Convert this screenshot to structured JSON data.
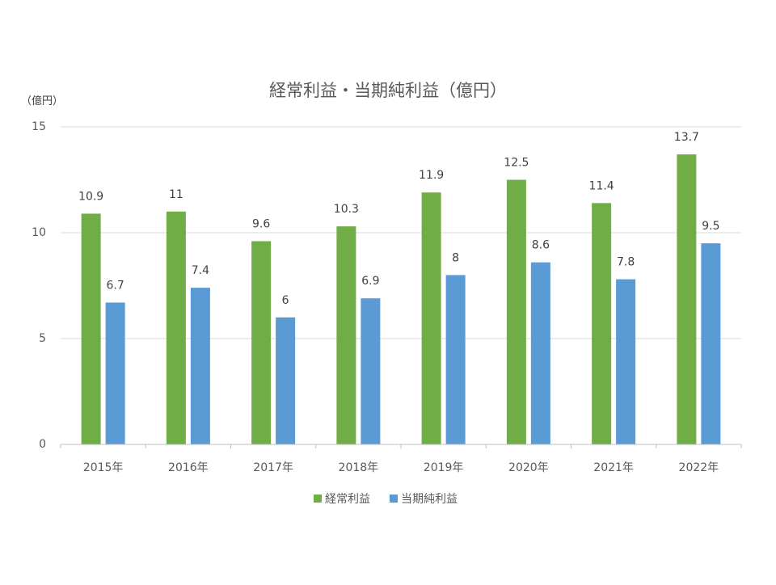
{
  "chart_data": {
    "type": "bar",
    "title": "経常利益・当期純利益（億円）",
    "ylabel": "（億円）",
    "xlabel": "",
    "ylim": [
      0,
      15
    ],
    "yticks": [
      0,
      5,
      10,
      15
    ],
    "grid": true,
    "legend_position": "bottom",
    "categories": [
      "2015年",
      "2016年",
      "2017年",
      "2018年",
      "2019年",
      "2020年",
      "2021年",
      "2022年"
    ],
    "series": [
      {
        "name": "経常利益",
        "color": "#70ad47",
        "values": [
          10.9,
          11,
          9.6,
          10.3,
          11.9,
          12.5,
          11.4,
          13.7
        ]
      },
      {
        "name": "当期純利益",
        "color": "#5b9bd5",
        "values": [
          6.7,
          7.4,
          6,
          6.9,
          8,
          8.6,
          7.8,
          9.5
        ]
      }
    ]
  }
}
